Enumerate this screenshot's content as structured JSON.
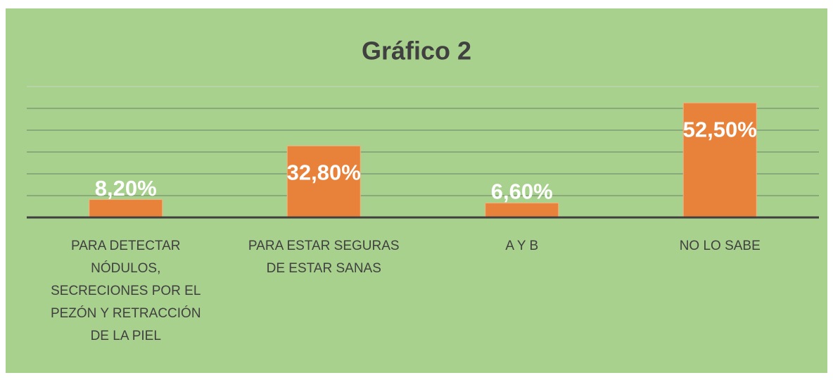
{
  "chart_data": {
    "type": "bar",
    "title": "Gráfico 2",
    "categories": [
      "PARA DETECTAR NÓDULOS, SECRECIONES POR EL PEZÓN Y RETRACCIÓN DE LA PIEL",
      "PARA ESTAR SEGURAS DE ESTAR SANAS",
      "A Y B",
      "NO LO SABE"
    ],
    "values": [
      8.2,
      32.8,
      6.6,
      52.5
    ],
    "value_labels": [
      "8,20%",
      "32,80%",
      "6,60%",
      "52,50%"
    ],
    "color": "#e8823a",
    "ylim": [
      0,
      60
    ],
    "yticks": [
      0,
      10,
      20,
      30,
      40,
      50,
      60
    ],
    "grid": true
  }
}
